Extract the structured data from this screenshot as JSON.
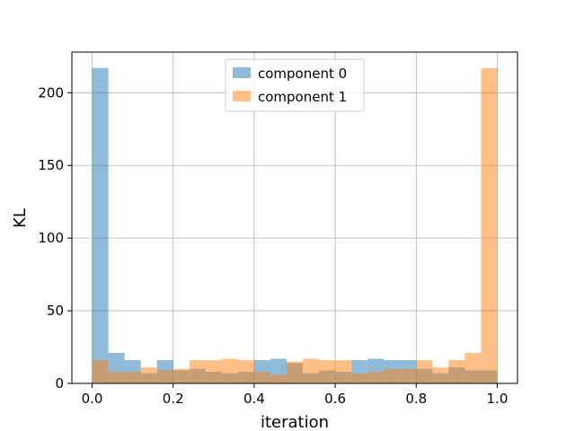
{
  "chart_data": {
    "type": "bar",
    "subtype": "overlapping-histogram",
    "xlabel": "iteration",
    "ylabel": "KL",
    "xlim": [
      -0.05,
      1.05
    ],
    "ylim": [
      0,
      228
    ],
    "xticks": [
      "0.0",
      "0.2",
      "0.4",
      "0.6",
      "0.8",
      "1.0"
    ],
    "yticks": [
      "0",
      "50",
      "100",
      "150",
      "200"
    ],
    "grid": true,
    "legend_position": "top-center",
    "bins": 25,
    "bin_edges": [
      0.0,
      0.04,
      0.08,
      0.12,
      0.16,
      0.2,
      0.24,
      0.28,
      0.32,
      0.36,
      0.4,
      0.44,
      0.48,
      0.52,
      0.56,
      0.6,
      0.64,
      0.68,
      0.72,
      0.76,
      0.8,
      0.84,
      0.88,
      0.92,
      0.96,
      1.0
    ],
    "series": [
      {
        "name": "component 0",
        "color": "#1f77b4",
        "values": [
          217,
          21,
          16,
          7,
          16,
          9,
          10,
          8,
          7,
          8,
          16,
          17,
          14,
          7,
          9,
          8,
          16,
          17,
          16,
          16,
          10,
          7,
          11,
          9,
          9
        ]
      },
      {
        "name": "component 1",
        "color": "#ff7f0e",
        "values": [
          16,
          8,
          8,
          11,
          9,
          10,
          16,
          16,
          17,
          16,
          8,
          6,
          15,
          17,
          16,
          16,
          7,
          8,
          10,
          10,
          16,
          11,
          16,
          21,
          217
        ]
      }
    ],
    "alpha": 0.5
  }
}
